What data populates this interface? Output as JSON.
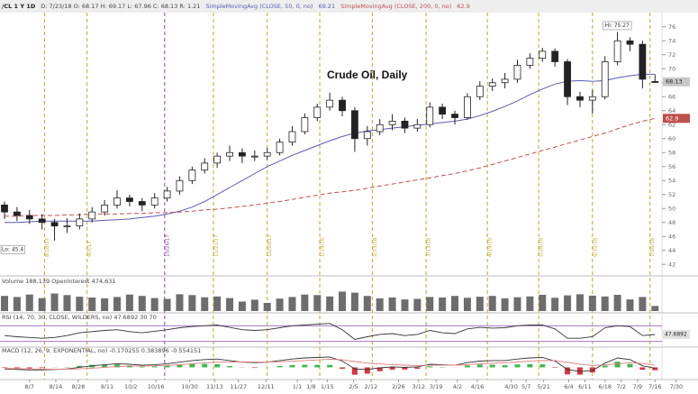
{
  "chart_data": {
    "type": "candlestick",
    "title": "Crude Oil, Daily",
    "header": {
      "symbol": "/CL 1 Y 1D",
      "quote": "D: 7/23/18   O: 68.17   H: 69.17   L: 67.96   C: 68.13   R: 1.21"
    },
    "hi_label": "Hi: 75.27",
    "lo_label": "Lo: 45.4",
    "xlim": [
      -0.36,
      54.5
    ],
    "ylim": [
      41,
      77
    ],
    "yticks": [
      42,
      44,
      46,
      48,
      50,
      52,
      54,
      56,
      58,
      60,
      62,
      64,
      66,
      68,
      70,
      72,
      74,
      76
    ],
    "xticks": [
      {
        "value": 2.0,
        "label": "8/7"
      },
      {
        "value": 4.1,
        "label": "8/14"
      },
      {
        "value": 5.9,
        "label": "8/28"
      },
      {
        "value": 8.2,
        "label": "9/11"
      },
      {
        "value": 10.1,
        "label": "10/2"
      },
      {
        "value": 12.1,
        "label": "10/16"
      },
      {
        "value": 14.8,
        "label": "10/30"
      },
      {
        "value": 16.8,
        "label": "11/13"
      },
      {
        "value": 18.7,
        "label": "11/27"
      },
      {
        "value": 20.9,
        "label": "12/11"
      },
      {
        "value": 23.4,
        "label": "1/1"
      },
      {
        "value": 24.5,
        "label": "1/8"
      },
      {
        "value": 25.8,
        "label": "1/15"
      },
      {
        "value": 27.9,
        "label": "2/5"
      },
      {
        "value": 29.3,
        "label": "2/12"
      },
      {
        "value": 31.5,
        "label": "2/26"
      },
      {
        "value": 33.1,
        "label": "3/12"
      },
      {
        "value": 34.5,
        "label": "3/19"
      },
      {
        "value": 36.2,
        "label": "4/2"
      },
      {
        "value": 37.8,
        "label": "4/16"
      },
      {
        "value": 40.5,
        "label": "4/30"
      },
      {
        "value": 41.7,
        "label": "5/7"
      },
      {
        "value": 43.1,
        "label": "5/21"
      },
      {
        "value": 45.1,
        "label": "6/4"
      },
      {
        "value": 46.4,
        "label": "6/11"
      },
      {
        "value": 48.0,
        "label": "6/18"
      },
      {
        "value": 49.3,
        "label": "7/2"
      },
      {
        "value": 50.6,
        "label": "7/9"
      },
      {
        "value": 52.0,
        "label": "7/16"
      },
      {
        "value": 53.7,
        "label": "7/30"
      }
    ],
    "up_color": "#ffffff",
    "down_color": "#222222",
    "open": [
      50.5,
      49.5,
      49.0,
      48.5,
      48.0,
      47.5,
      47.5,
      48.5,
      49.5,
      50.5,
      51.5,
      51.0,
      50.5,
      51.5,
      52.5,
      54.0,
      55.5,
      56.5,
      57.5,
      58.0,
      57.5,
      57.5,
      58.0,
      59.5,
      61.0,
      63.0,
      64.5,
      65.5,
      64.0,
      60.0,
      61.0,
      62.0,
      62.5,
      61.5,
      62.0,
      64.5,
      63.5,
      63.0,
      66.0,
      67.5,
      68.0,
      68.5,
      70.5,
      71.5,
      72.5,
      71.0,
      66.0,
      65.5,
      66.0,
      71.0,
      74.0,
      73.5,
      68.17
    ],
    "high": [
      51.0,
      50.2,
      49.8,
      49.2,
      48.5,
      48.6,
      49.3,
      50.2,
      51.2,
      52.6,
      52.0,
      51.5,
      52.2,
      53.1,
      54.6,
      56.0,
      57.2,
      58.0,
      59.0,
      58.6,
      58.3,
      58.7,
      60.0,
      61.8,
      63.6,
      65.0,
      66.6,
      66.0,
      64.5,
      61.8,
      62.8,
      63.5,
      63.0,
      62.8,
      65.2,
      65.0,
      64.0,
      66.5,
      68.2,
      68.6,
      69.4,
      71.3,
      72.2,
      73.0,
      72.9,
      71.4,
      66.7,
      67.0,
      71.8,
      75.27,
      74.5,
      74.0,
      69.17
    ],
    "low": [
      48.5,
      48.2,
      47.8,
      47.0,
      45.4,
      46.5,
      47.0,
      48.0,
      49.0,
      50.0,
      50.3,
      49.6,
      50.0,
      51.0,
      52.0,
      53.5,
      55.0,
      55.8,
      56.8,
      56.5,
      56.8,
      57.0,
      57.6,
      59.0,
      60.6,
      62.5,
      64.0,
      63.2,
      58.1,
      59.0,
      60.5,
      61.2,
      60.8,
      61.0,
      61.6,
      62.8,
      62.0,
      62.7,
      65.5,
      66.8,
      67.2,
      68.0,
      70.0,
      71.0,
      70.3,
      64.8,
      64.5,
      63.6,
      65.6,
      70.5,
      72.5,
      67.2,
      67.96
    ],
    "close": [
      49.5,
      49.0,
      48.5,
      48.0,
      47.5,
      47.5,
      48.5,
      49.5,
      50.5,
      51.5,
      51.0,
      50.5,
      51.5,
      52.5,
      54.0,
      55.5,
      56.5,
      57.5,
      58.0,
      57.5,
      57.5,
      58.0,
      59.5,
      61.0,
      63.0,
      64.5,
      65.5,
      64.0,
      60.0,
      61.0,
      62.0,
      62.5,
      61.5,
      62.0,
      64.5,
      63.5,
      63.0,
      66.0,
      67.5,
      68.0,
      68.5,
      70.5,
      71.5,
      72.5,
      71.0,
      66.0,
      65.5,
      66.0,
      71.0,
      74.0,
      73.5,
      68.5,
      68.13
    ],
    "series": [
      {
        "name": "SimpleMovingAvg (CLOSE, 50, 0, no)",
        "color": "#5a5ab8",
        "dashed": false,
        "values": [
          48.0,
          48.0,
          48.1,
          48.2,
          48.2,
          48.2,
          48.2,
          48.2,
          48.3,
          48.4,
          48.5,
          48.7,
          48.9,
          49.2,
          49.6,
          50.2,
          51.0,
          52.0,
          53.0,
          54.0,
          55.0,
          56.0,
          56.8,
          57.6,
          58.3,
          59.0,
          59.7,
          60.3,
          60.8,
          61.1,
          61.3,
          61.5,
          61.7,
          61.9,
          62.1,
          62.3,
          62.5,
          62.8,
          63.3,
          63.9,
          64.6,
          65.4,
          66.3,
          67.1,
          67.8,
          68.2,
          68.3,
          68.2,
          68.3,
          68.7,
          69.0,
          69.2,
          69.21
        ]
      },
      {
        "name": "SimpleMovingAvg (CLOSE, 200, 0, no)",
        "color": "#c0504d",
        "dashed": true,
        "values": [
          48.9,
          48.9,
          49.0,
          49.0,
          49.0,
          49.1,
          49.1,
          49.2,
          49.2,
          49.2,
          49.3,
          49.3,
          49.4,
          49.4,
          49.5,
          49.6,
          49.8,
          49.9,
          50.1,
          50.3,
          50.5,
          50.8,
          51.0,
          51.3,
          51.6,
          51.9,
          52.2,
          52.4,
          52.6,
          52.9,
          53.2,
          53.5,
          53.8,
          54.1,
          54.4,
          54.7,
          55.0,
          55.4,
          55.8,
          56.3,
          56.8,
          57.3,
          57.8,
          58.3,
          58.8,
          59.3,
          59.8,
          60.3,
          60.8,
          61.4,
          62.0,
          62.5,
          62.9
        ]
      }
    ],
    "events": [
      {
        "x": 3.2,
        "label": "8/18/17",
        "color": "#c9a227"
      },
      {
        "x": 6.6,
        "label": "9/7/17",
        "color": "#c9a227"
      },
      {
        "x": 12.8,
        "label": "10/26/17",
        "color": "#8e44ad"
      },
      {
        "x": 16.7,
        "label": "11/21/17",
        "color": "#c9a227"
      },
      {
        "x": 21.0,
        "label": "12/20/17",
        "color": "#c9a227"
      },
      {
        "x": 25.2,
        "label": "1/19/18",
        "color": "#c9a227"
      },
      {
        "x": 29.4,
        "label": "2/13/18",
        "color": "#c9a227"
      },
      {
        "x": 33.7,
        "label": "3/13/18",
        "color": "#c9a227"
      },
      {
        "x": 38.6,
        "label": "4/19/18",
        "color": "#c9a227"
      },
      {
        "x": 42.7,
        "label": "5/18/18",
        "color": "#c9a227"
      },
      {
        "x": 47.0,
        "label": "6/15/18",
        "color": "#c9a227"
      },
      {
        "x": 51.6,
        "label": "7/16/18",
        "color": "#c9a227"
      }
    ],
    "panels": [
      {
        "type": "bar",
        "title": "Volume  188,139   OpenInterest  474,631",
        "color": "#6d6d6d",
        "ylim": [
          0,
          900000
        ],
        "values": [
          560000,
          520000,
          610000,
          480000,
          650000,
          590000,
          530000,
          500000,
          470000,
          520000,
          610000,
          560000,
          480000,
          450000,
          620000,
          590000,
          510000,
          540000,
          480000,
          350000,
          420000,
          300000,
          460000,
          520000,
          610000,
          590000,
          540000,
          720000,
          680000,
          560000,
          470000,
          500000,
          430000,
          450000,
          520000,
          500000,
          560000,
          490000,
          530000,
          560000,
          470000,
          510000,
          540000,
          600000,
          490000,
          580000,
          620000,
          570000,
          540000,
          600000,
          430000,
          520000,
          188139
        ]
      },
      {
        "type": "line",
        "title": "RSI (14, 70, 30, CLOSE, WILDERS, no)  47.6892   30   70",
        "color": "#333333",
        "ylim": [
          20,
          80
        ],
        "levels": [
          70,
          30
        ],
        "level_color": "#9a5fc0",
        "values": [
          45,
          42,
          40,
          38,
          40,
          45,
          52,
          55,
          58,
          60,
          55,
          52,
          56,
          60,
          65,
          68,
          70,
          72,
          66,
          60,
          58,
          60,
          65,
          70,
          72,
          74,
          76,
          60,
          35,
          42,
          48,
          50,
          45,
          48,
          58,
          52,
          50,
          62,
          66,
          64,
          65,
          70,
          72,
          72,
          62,
          38,
          38,
          42,
          65,
          70,
          68,
          45,
          47.6892
        ]
      },
      {
        "type": "macd",
        "title": "MACD (12, 26, 9, EXPONENTIAL, no)  -0.170255   0.383896   -0.554151",
        "ylim": [
          -2,
          2.5
        ],
        "series": [
          {
            "color": "#333333",
            "values": [
              -0.3,
              -0.4,
              -0.5,
              -0.5,
              -0.4,
              -0.3,
              0,
              0.3,
              0.5,
              0.7,
              0.6,
              0.4,
              0.5,
              0.7,
              1.0,
              1.3,
              1.5,
              1.6,
              1.3,
              1.0,
              0.9,
              1.0,
              1.3,
              1.6,
              1.8,
              1.9,
              2.0,
              1.2,
              -0.3,
              -0.4,
              -0.1,
              0.1,
              0,
              0.1,
              0.6,
              0.5,
              0.4,
              0.9,
              1.2,
              1.3,
              1.3,
              1.6,
              1.8,
              1.9,
              1.2,
              -0.4,
              -0.8,
              -0.6,
              0.8,
              1.8,
              1.5,
              0.3,
              -0.17
            ]
          },
          {
            "color": "#e07b7b",
            "values": [
              -0.2,
              -0.25,
              -0.3,
              -0.36,
              -0.37,
              -0.36,
              -0.29,
              -0.17,
              0,
              0.14,
              0.24,
              0.27,
              0.31,
              0.39,
              0.51,
              0.67,
              0.84,
              0.99,
              1.05,
              1.04,
              1.01,
              1.01,
              1.07,
              1.18,
              1.3,
              1.42,
              1.54,
              1.47,
              1.12,
              0.82,
              0.64,
              0.53,
              0.42,
              0.36,
              0.41,
              0.43,
              0.42,
              0.52,
              0.66,
              0.79,
              0.89,
              1.03,
              1.18,
              1.32,
              1.3,
              0.96,
              0.61,
              0.37,
              0.46,
              0.71,
              0.87,
              0.76,
              0.38
            ]
          }
        ],
        "histogram": {
          "up_color": "#3cb84a",
          "down_color": "#d9363e",
          "values": [
            -0.1,
            -0.15,
            -0.2,
            -0.14,
            -0.03,
            0.06,
            0.29,
            0.47,
            0.5,
            0.56,
            0.36,
            0.13,
            0.19,
            0.31,
            0.49,
            0.63,
            0.66,
            0.61,
            0.25,
            -0.04,
            -0.11,
            -0.01,
            0.23,
            0.42,
            0.5,
            0.48,
            0.46,
            -0.27,
            -1.42,
            -1.22,
            -0.74,
            -0.43,
            -0.42,
            -0.26,
            0.19,
            0.07,
            -0.02,
            0.38,
            0.54,
            0.51,
            0.41,
            0.57,
            0.62,
            0.58,
            -0.1,
            -1.36,
            -1.41,
            -0.97,
            0.34,
            1.09,
            0.63,
            -0.46,
            -0.55
          ]
        }
      }
    ]
  }
}
